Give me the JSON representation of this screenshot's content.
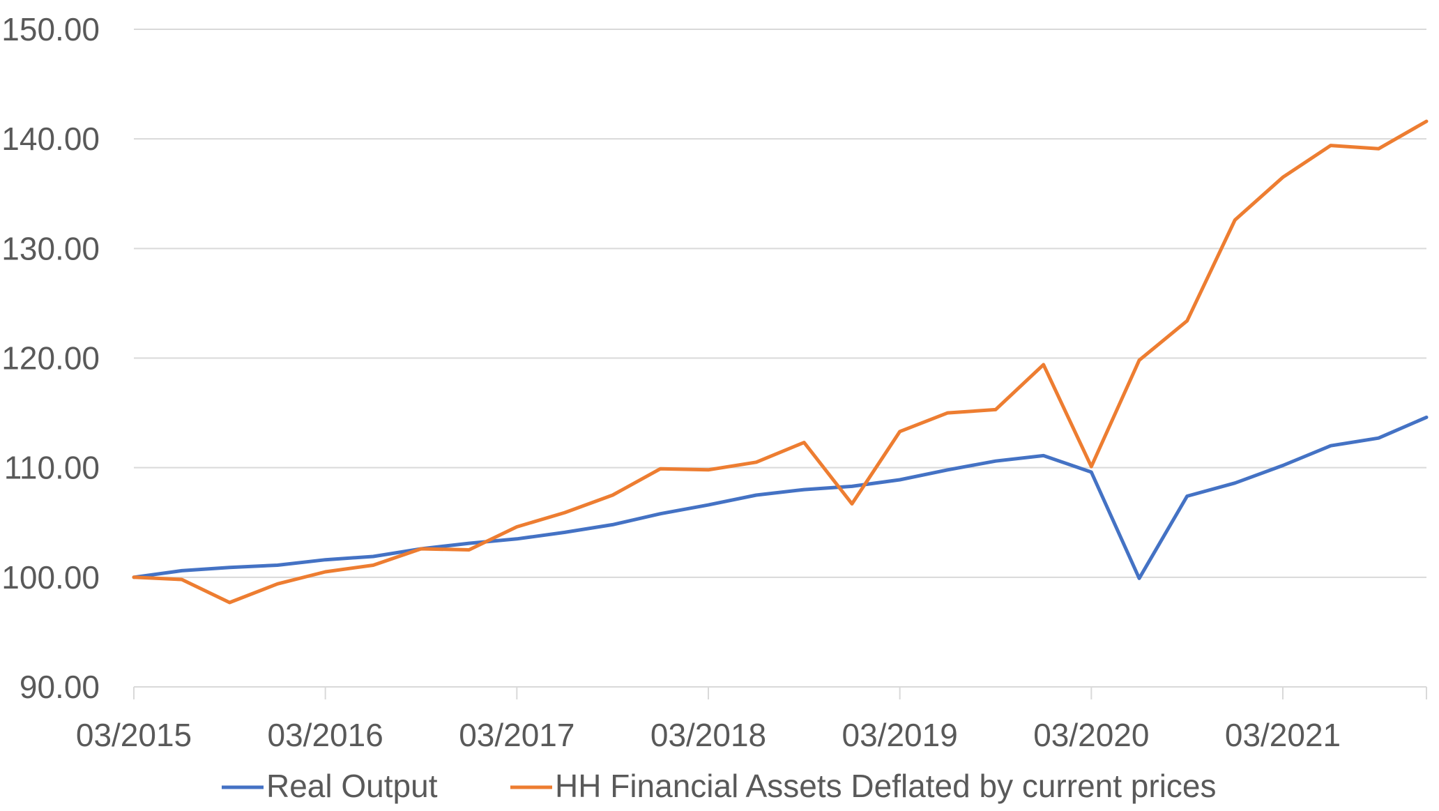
{
  "chart_data": {
    "type": "line",
    "title": "",
    "xlabel": "",
    "ylabel": "",
    "ylim": [
      90,
      150
    ],
    "y_ticks": [
      90,
      100,
      110,
      120,
      130,
      140,
      150
    ],
    "y_tick_labels": [
      "90.00",
      "100.00",
      "110.00",
      "120.00",
      "130.00",
      "140.00",
      "150.00"
    ],
    "x_tick_labels": [
      "03/2015",
      "03/2016",
      "03/2017",
      "03/2018",
      "03/2019",
      "03/2020",
      "03/2021"
    ],
    "x_tick_index": [
      0,
      4,
      8,
      12,
      16,
      20,
      24
    ],
    "x": [
      "03/2015",
      "06/2015",
      "09/2015",
      "12/2015",
      "03/2016",
      "06/2016",
      "09/2016",
      "12/2016",
      "03/2017",
      "06/2017",
      "09/2017",
      "12/2017",
      "03/2018",
      "06/2018",
      "09/2018",
      "12/2018",
      "03/2019",
      "06/2019",
      "09/2019",
      "12/2019",
      "03/2020",
      "06/2020",
      "09/2020",
      "12/2020",
      "03/2021",
      "06/2021",
      "09/2021",
      "12/2021"
    ],
    "grid": true,
    "legend_position": "bottom",
    "series": [
      {
        "name": "Real Output",
        "color": "#4472C4",
        "values": [
          100.0,
          100.6,
          100.9,
          101.1,
          101.6,
          101.9,
          102.6,
          103.1,
          103.5,
          104.1,
          104.8,
          105.8,
          106.6,
          107.5,
          108.0,
          108.3,
          108.9,
          109.8,
          110.6,
          111.1,
          109.6,
          99.9,
          107.4,
          108.6,
          110.2,
          112.0,
          112.7,
          114.6
        ]
      },
      {
        "name": "HH Financial Assets Deflated by current prices",
        "color": "#ED7D31",
        "values": [
          100.0,
          99.8,
          97.7,
          99.4,
          100.5,
          101.1,
          102.6,
          102.5,
          104.6,
          105.9,
          107.5,
          109.9,
          109.8,
          110.5,
          112.3,
          106.7,
          113.3,
          115.0,
          115.3,
          119.4,
          110.1,
          119.8,
          123.4,
          132.6,
          136.5,
          139.4,
          139.1,
          141.6
        ]
      }
    ]
  }
}
